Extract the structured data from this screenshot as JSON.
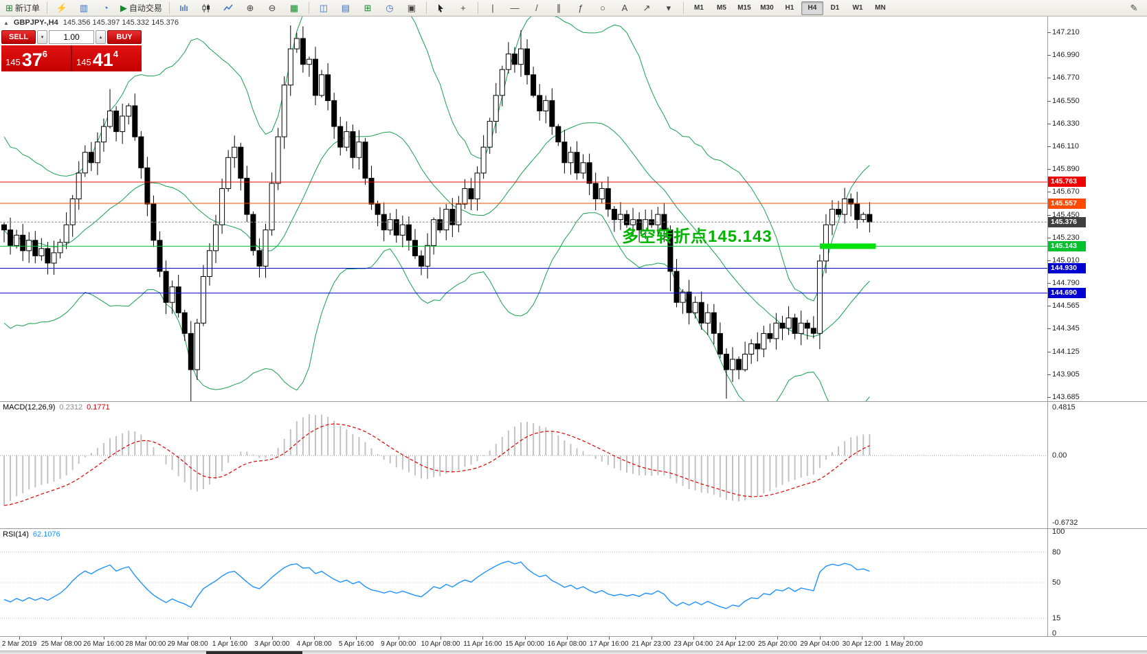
{
  "toolbar": {
    "new_order_label": "新订单",
    "autotrading_label": "自动交易",
    "timeframes": [
      "M1",
      "M5",
      "M15",
      "M30",
      "H1",
      "H4",
      "D1",
      "W1",
      "MN"
    ],
    "active_timeframe": "H4",
    "icons": {
      "new_order": "⊞",
      "lightning": "⚡",
      "chart_window": "▥",
      "globe": "◔",
      "play": "▶",
      "zoom_in": "⊕",
      "zoom_out": "⊖",
      "tile_windows": "▦",
      "cascade": "◫",
      "window_list": "▤",
      "add_indicator": "⊞",
      "clock": "◷",
      "panel": "▣",
      "crosshair": "+",
      "vline": "|",
      "hline": "—",
      "trendline": "/",
      "channel": "∥",
      "fibonacci": "ƒ",
      "ellipse": "○",
      "text_tool": "A",
      "arrow_tool": "↗",
      "dropdown": "▾",
      "pencil": "✎"
    }
  },
  "symbol_header": {
    "collapse_icon": "▲",
    "symbol": "GBPJPY-,H4",
    "ohlc": "145.356 145.397 145.332 145.376"
  },
  "one_click": {
    "sell_label": "SELL",
    "buy_label": "BUY",
    "volume": "1.00",
    "spin_up": "▴",
    "spin_down": "▾",
    "bid_whole": "145",
    "bid_pips": "37",
    "bid_sub": "6",
    "ask_whole": "145",
    "ask_pips": "41",
    "ask_sub": "4"
  },
  "annotation": {
    "text": "多空转折点145.143",
    "color": "#00b400"
  },
  "price_axis": [
    "147.210",
    "146.990",
    "146.770",
    "146.550",
    "146.330",
    "146.110",
    "145.890",
    "145.670",
    "145.450",
    "145.230",
    "145.010",
    "144.790",
    "144.565",
    "144.345",
    "144.125",
    "143.905",
    "143.685"
  ],
  "price_tags": [
    {
      "label": "145.763",
      "price": 145.763,
      "bg": "#f00000",
      "line": "#f00000",
      "style": "solid"
    },
    {
      "label": "145.557",
      "price": 145.557,
      "bg": "#ff4a00",
      "line": "#ff4a00",
      "style": "solid"
    },
    {
      "label": "145.376",
      "price": 145.376,
      "bg": "#3f3f3f",
      "line": "#8a8a8a",
      "style": "dashed"
    },
    {
      "label": "145.143",
      "price": 145.143,
      "bg": "#00c22e",
      "line": "#00c22e",
      "style": "solid"
    },
    {
      "label": "144.930",
      "price": 144.93,
      "bg": "#0000d2",
      "line": "#0000d2",
      "style": "solid"
    },
    {
      "label": "144.690",
      "price": 144.69,
      "bg": "#0000d2",
      "line": "#0000d2",
      "style": "solid"
    }
  ],
  "macd": {
    "name": "MACD(12,26,9)",
    "value_main": "0.2312",
    "value_signal": "0.1771",
    "axis": [
      "0.4815",
      "0.00",
      "-0.6732"
    ],
    "histogram_color": "#c2c2c2",
    "signal_color": "#e00000"
  },
  "rsi": {
    "name": "RSI(14)",
    "value": "62.1076",
    "axis": [
      "100",
      "80",
      "50",
      "15",
      "0"
    ],
    "levels": [
      80,
      50,
      15
    ],
    "line_color": "#1e90ff"
  },
  "time_axis": [
    "2 Mar 2019",
    "25 Mar 08:00",
    "26 Mar 16:00",
    "28 Mar 00:00",
    "29 Mar 08:00",
    "1 Apr 16:00",
    "3 Apr 00:00",
    "4 Apr 08:00",
    "5 Apr 16:00",
    "9 Apr 00:00",
    "10 Apr 08:00",
    "11 Apr 16:00",
    "15 Apr 00:00",
    "16 Apr 08:00",
    "17 Apr 16:00",
    "21 Apr 23:00",
    "23 Apr 04:00",
    "24 Apr 12:00",
    "25 Apr 20:00",
    "29 Apr 04:00",
    "30 Apr 12:00",
    "1 May 20:00"
  ],
  "chart_data": {
    "type": "candlestick",
    "symbol": "GBPJPY",
    "timeframe": "H4",
    "price_min": 143.685,
    "price_max": 147.21,
    "current_price": 145.376,
    "closes": [
      145.3,
      145.15,
      145.25,
      145.1,
      145.2,
      145.05,
      145.12,
      144.98,
      145.08,
      145.18,
      145.35,
      145.6,
      145.85,
      146.05,
      145.95,
      146.15,
      146.3,
      146.45,
      146.25,
      146.4,
      146.5,
      146.2,
      145.9,
      145.55,
      145.2,
      144.9,
      144.6,
      144.75,
      144.5,
      144.3,
      143.95,
      144.4,
      144.85,
      145.1,
      145.35,
      145.7,
      146.0,
      146.1,
      145.8,
      145.45,
      145.1,
      144.95,
      145.3,
      145.75,
      146.2,
      146.7,
      147.05,
      147.15,
      146.9,
      146.95,
      146.6,
      146.8,
      146.55,
      146.3,
      146.1,
      146.25,
      146.0,
      146.15,
      145.8,
      145.55,
      145.45,
      145.3,
      145.4,
      145.25,
      145.35,
      145.2,
      145.05,
      144.95,
      145.15,
      145.4,
      145.3,
      145.5,
      145.35,
      145.55,
      145.7,
      145.6,
      145.85,
      146.1,
      146.35,
      146.6,
      146.85,
      147.0,
      146.9,
      147.05,
      146.8,
      146.6,
      146.45,
      146.55,
      146.3,
      146.15,
      145.95,
      146.05,
      145.85,
      145.95,
      145.75,
      145.6,
      145.7,
      145.5,
      145.4,
      145.45,
      145.35,
      145.4,
      145.3,
      145.4,
      145.35,
      145.45,
      145.3,
      144.9,
      144.6,
      144.7,
      144.5,
      144.6,
      144.4,
      144.5,
      144.3,
      144.1,
      143.95,
      144.05,
      143.95,
      144.1,
      144.2,
      144.15,
      144.3,
      144.25,
      144.4,
      144.35,
      144.45,
      144.3,
      144.4,
      144.35,
      144.3,
      145.0,
      145.35,
      145.5,
      145.45,
      145.6,
      145.55,
      145.4,
      145.45,
      145.376
    ],
    "bollinger": {
      "period": 20,
      "deviation": 2,
      "color": "#16a04e"
    },
    "horizontal_lines": [
      145.763,
      145.557,
      145.143,
      144.93,
      144.69
    ],
    "support_segment": {
      "price": 145.143,
      "from_bar": 131,
      "to_bar": 140,
      "color": "#00e10e"
    },
    "macd_axis_max": 0.4815,
    "macd_axis_min": -0.6732
  }
}
